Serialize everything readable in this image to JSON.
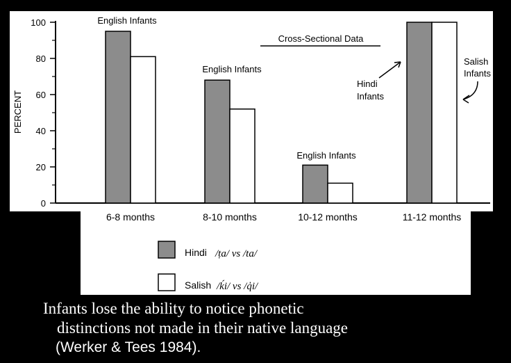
{
  "chart_data": {
    "type": "bar",
    "ylabel": "PERCENT",
    "ylim": [
      0,
      100
    ],
    "yticks": [
      0,
      20,
      40,
      60,
      80,
      100
    ],
    "categories": [
      "6-8 months",
      "8-10 months",
      "10-12 months",
      "11-12 months"
    ],
    "series": [
      {
        "name": "Hindi",
        "color": "#8c8c8c",
        "values": [
          95,
          68,
          21,
          100
        ]
      },
      {
        "name": "Salish",
        "color": "#ffffff",
        "values": [
          81,
          52,
          11,
          100
        ]
      }
    ],
    "annotations": {
      "group_labels": [
        "English Infants",
        "English Infants",
        "English Infants"
      ],
      "cross_sectional": "Cross-Sectional Data",
      "hindi_infants": [
        "Hindi",
        "Infants"
      ],
      "salish_infants": [
        "Salish",
        "Infants"
      ]
    },
    "legend": [
      {
        "label": "Hindi",
        "contrast": "/ṭa/ vs /ta/",
        "color": "#8c8c8c"
      },
      {
        "label": "Salish",
        "contrast": "/ḱi/ vs /q̓i/",
        "color": "#ffffff"
      }
    ]
  },
  "caption": {
    "line1": "Infants lose the ability to notice phonetic",
    "line2": "distinctions not made in their native language",
    "line3": "(Werker & Tees 1984)."
  }
}
